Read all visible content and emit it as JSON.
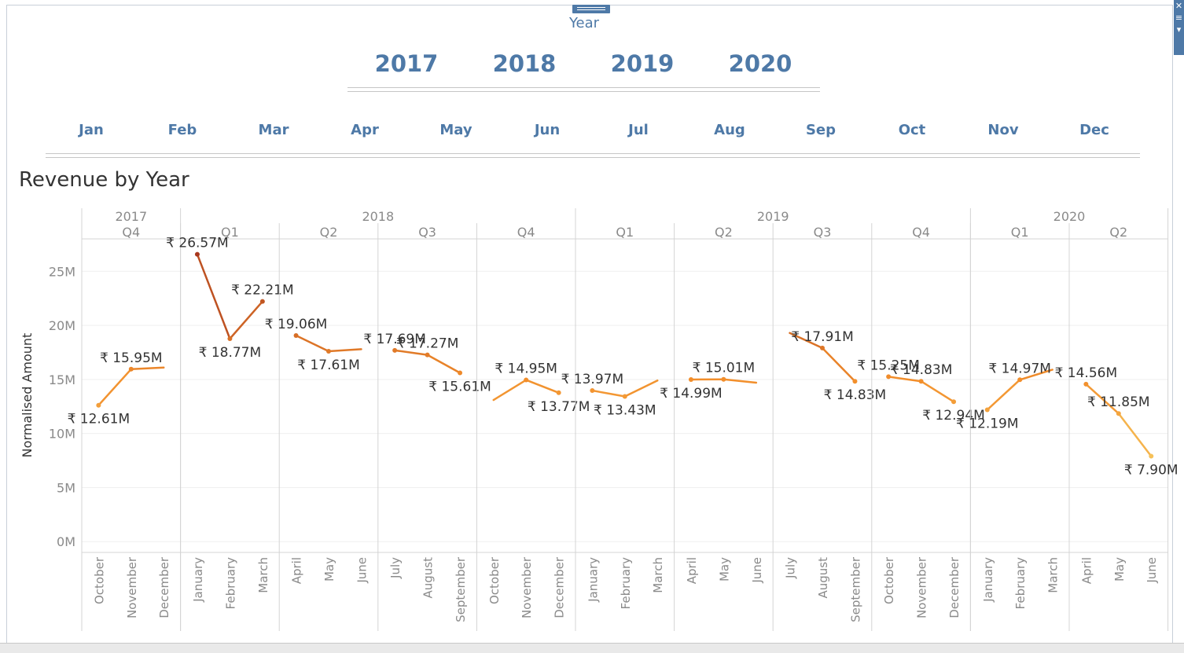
{
  "filter": {
    "title": "Year",
    "years": [
      "2017",
      "2018",
      "2019",
      "2020"
    ],
    "months": [
      "Jan",
      "Feb",
      "Mar",
      "Apr",
      "May",
      "Jun",
      "Jul",
      "Aug",
      "Sep",
      "Oct",
      "Nov",
      "Dec"
    ]
  },
  "chart_data": {
    "type": "line",
    "title": "Revenue by Year",
    "ylabel": "Normalised Amount",
    "xlabel": "",
    "ylim": [
      -1,
      28
    ],
    "yticks": [
      0,
      5,
      10,
      15,
      20,
      25
    ],
    "ytick_labels": [
      "0M",
      "5M",
      "10M",
      "15M",
      "20M",
      "25M"
    ],
    "grid": true,
    "colors": {
      "low": "#f6c85f",
      "mid": "#f28e2b",
      "high": "#a8381e"
    },
    "years": [
      {
        "label": "2017",
        "quarters": 1
      },
      {
        "label": "2018",
        "quarters": 4
      },
      {
        "label": "2019",
        "quarters": 4
      },
      {
        "label": "2020",
        "quarters": 2
      }
    ],
    "panels": [
      {
        "year": "2017",
        "quarter": "Q4",
        "months": [
          "October",
          "November",
          "December"
        ],
        "values": [
          12.61,
          15.95,
          16.1
        ],
        "labels": [
          "₹ 12.61M",
          "₹ 15.95M",
          null
        ]
      },
      {
        "year": "2018",
        "quarter": "Q1",
        "months": [
          "January",
          "February",
          "March"
        ],
        "values": [
          26.57,
          18.77,
          22.21
        ],
        "labels": [
          "₹ 26.57M",
          "₹ 18.77M",
          "₹ 22.21M"
        ]
      },
      {
        "year": "2018",
        "quarter": "Q2",
        "months": [
          "April",
          "May",
          "June"
        ],
        "values": [
          19.06,
          17.61,
          17.8
        ],
        "labels": [
          "₹ 19.06M",
          "₹ 17.61M",
          null
        ]
      },
      {
        "year": "2018",
        "quarter": "Q3",
        "months": [
          "July",
          "August",
          "September"
        ],
        "values": [
          17.69,
          17.27,
          15.61
        ],
        "labels": [
          "₹ 17.69M",
          "₹ 17.27M",
          "₹ 15.61M"
        ]
      },
      {
        "year": "2018",
        "quarter": "Q4",
        "months": [
          "October",
          "November",
          "December"
        ],
        "values": [
          13.1,
          14.95,
          13.77
        ],
        "labels": [
          null,
          "₹ 14.95M",
          "₹ 13.77M"
        ]
      },
      {
        "year": "2019",
        "quarter": "Q1",
        "months": [
          "January",
          "February",
          "March"
        ],
        "values": [
          13.97,
          13.43,
          14.9
        ],
        "labels": [
          "₹ 13.97M",
          "₹ 13.43M",
          null
        ]
      },
      {
        "year": "2019",
        "quarter": "Q2",
        "months": [
          "April",
          "May",
          "June"
        ],
        "values": [
          14.99,
          15.01,
          14.7
        ],
        "labels": [
          "₹ 14.99M",
          "₹ 15.01M",
          null
        ]
      },
      {
        "year": "2019",
        "quarter": "Q3",
        "months": [
          "July",
          "August",
          "September"
        ],
        "values": [
          19.3,
          17.91,
          14.83
        ],
        "labels": [
          null,
          "₹ 17.91M",
          "₹ 14.83M"
        ]
      },
      {
        "year": "2019",
        "quarter": "Q4",
        "months": [
          "October",
          "November",
          "December"
        ],
        "values": [
          15.25,
          14.83,
          12.94
        ],
        "labels": [
          "₹ 15.25M",
          "₹ 14.83M",
          "₹ 12.94M"
        ]
      },
      {
        "year": "2020",
        "quarter": "Q1",
        "months": [
          "January",
          "February",
          "March"
        ],
        "values": [
          12.19,
          14.97,
          15.9
        ],
        "labels": [
          "₹ 12.19M",
          "₹ 14.97M",
          null
        ]
      },
      {
        "year": "2020",
        "quarter": "Q2",
        "months": [
          "April",
          "May",
          "June"
        ],
        "values": [
          14.56,
          11.85,
          7.9
        ],
        "labels": [
          "₹ 14.56M",
          "₹ 11.85M",
          "₹ 7.90M"
        ]
      }
    ]
  }
}
